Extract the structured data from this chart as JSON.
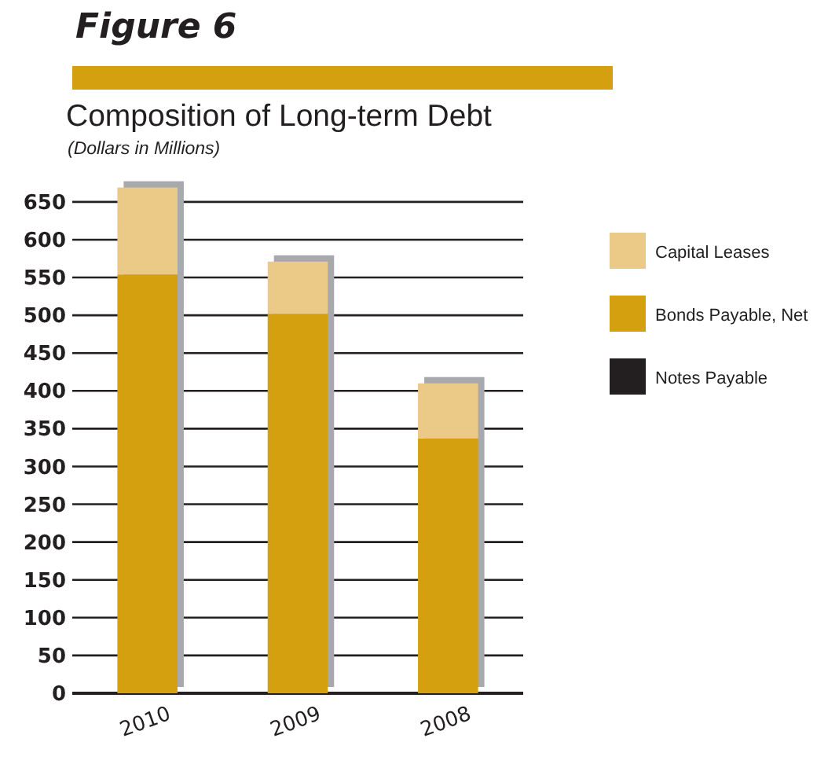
{
  "chart_data": {
    "type": "bar",
    "title": "Composition of Long-term Debt",
    "subtitle": "(Dollars in Millions)",
    "annotations": [
      "Figure 6"
    ],
    "categories": [
      "2010",
      "2009",
      "2008"
    ],
    "stacked": true,
    "series": [
      {
        "name": "Notes Payable",
        "color": "#231f20",
        "values": [
          0,
          0,
          0
        ]
      },
      {
        "name": "Bonds Payable, Net",
        "color": "#d4a010",
        "values": [
          554,
          502,
          337
        ]
      },
      {
        "name": "Capital Leases",
        "color": "#ebc987",
        "values": [
          115,
          69,
          73
        ]
      }
    ],
    "ylim": [
      0,
      680
    ],
    "yticks": [
      0,
      50,
      100,
      150,
      200,
      250,
      300,
      350,
      400,
      450,
      500,
      550,
      600,
      650
    ],
    "grid": "y",
    "legend": "right"
  }
}
